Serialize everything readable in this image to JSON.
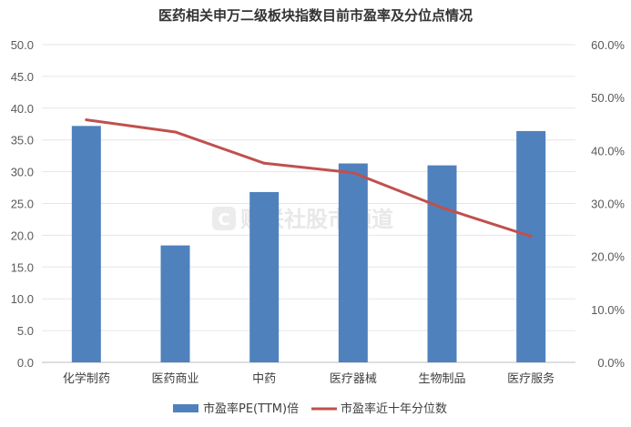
{
  "watermark": {
    "text": "财联社股市频道",
    "logo_letter": "C"
  },
  "chart_data": {
    "type": "bar",
    "title": "医药相关申万二级板块指数目前市盈率及分位点情况",
    "categories": [
      "化学制药",
      "医药商业",
      "中药",
      "医疗器械",
      "生物制品",
      "医疗服务"
    ],
    "series": [
      {
        "name": "市盈率PE(TTM)倍",
        "kind": "bar",
        "axis": "left",
        "color": "#4f81bd",
        "values": [
          37.2,
          18.4,
          26.8,
          31.3,
          31.0,
          36.4
        ]
      },
      {
        "name": "市盈率近十年分位数",
        "kind": "line",
        "axis": "right",
        "color": "#c0504d",
        "values": [
          45.8,
          43.5,
          37.6,
          35.8,
          29.2,
          23.8
        ]
      }
    ],
    "y_left": {
      "min": 0,
      "max": 50,
      "step": 5,
      "ticks": [
        "0.0",
        "5.0",
        "10.0",
        "15.0",
        "20.0",
        "25.0",
        "30.0",
        "35.0",
        "40.0",
        "45.0",
        "50.0"
      ]
    },
    "y_right": {
      "min": 0,
      "max": 60,
      "step": 10,
      "ticks": [
        "0.0%",
        "10.0%",
        "20.0%",
        "30.0%",
        "40.0%",
        "50.0%",
        "60.0%"
      ]
    },
    "grid": true,
    "legend": "bottom"
  }
}
